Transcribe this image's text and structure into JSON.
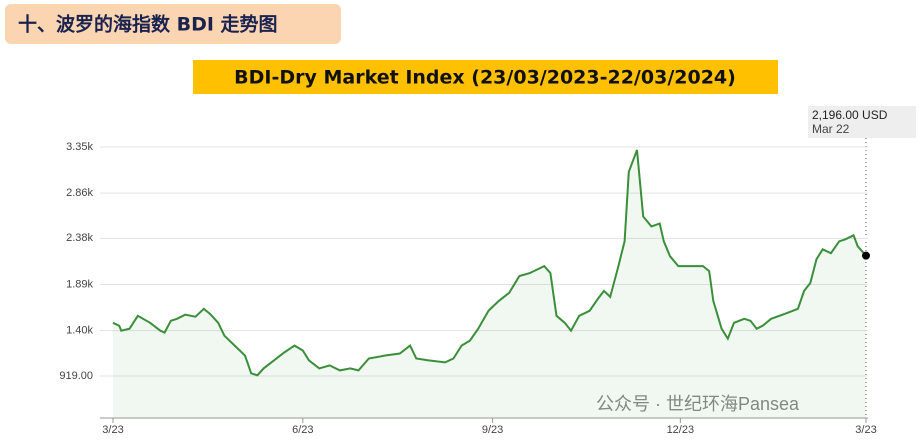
{
  "header": {
    "title": "十、波罗的海指数 BDI 走势图"
  },
  "watermark": "公众号 · 世纪环海Pansea",
  "chart_data": {
    "type": "line",
    "title": "BDI-Dry Market Index (23/03/2023-22/03/2024)",
    "annotation": [
      "2,196.00 USD",
      "Mar 22"
    ],
    "x": [
      0,
      3,
      4,
      8,
      12,
      18,
      23,
      25,
      28,
      31,
      35,
      40,
      44,
      47,
      51,
      54,
      59,
      64,
      67,
      70,
      73,
      78,
      83,
      88,
      92,
      95,
      100,
      105,
      110,
      115,
      119,
      124,
      132,
      139,
      144,
      147,
      153,
      161,
      165,
      169,
      173,
      177,
      182,
      187,
      192,
      197,
      202,
      206,
      209,
      212,
      215,
      219,
      222,
      226,
      231,
      235,
      238,
      241,
      245,
      248,
      250,
      254,
      257,
      261,
      265,
      267,
      270,
      274,
      279,
      286,
      289,
      291,
      295,
      298,
      301,
      306,
      309,
      312,
      315,
      319,
      323,
      327,
      332,
      335,
      338,
      341,
      344,
      348,
      352,
      355,
      359,
      361,
      365
    ],
    "series": [
      {
        "name": "BDI",
        "color": "#3a8f3a",
        "values": [
          1484,
          1453,
          1400,
          1421,
          1558,
          1484,
          1400,
          1379,
          1505,
          1526,
          1569,
          1548,
          1632,
          1579,
          1484,
          1347,
          1242,
          1136,
          947,
          926,
          1000,
          1084,
          1168,
          1242,
          1189,
          1084,
          1000,
          1031,
          978,
          1000,
          978,
          1105,
          1136,
          1158,
          1242,
          1105,
          1084,
          1063,
          1105,
          1242,
          1295,
          1421,
          1611,
          1716,
          1801,
          1980,
          2011,
          2054,
          2085,
          2011,
          1558,
          1484,
          1400,
          1558,
          1611,
          1737,
          1822,
          1758,
          2085,
          2349,
          3086,
          3318,
          2612,
          2507,
          2538,
          2349,
          2190,
          2085,
          2085,
          2085,
          2032,
          1716,
          1421,
          1316,
          1484,
          1526,
          1505,
          1421,
          1453,
          1526,
          1558,
          1590,
          1632,
          1822,
          1906,
          2159,
          2264,
          2222,
          2349,
          2370,
          2412,
          2296,
          2196
        ]
      }
    ],
    "xlim": [
      0,
      365
    ],
    "xticks": [
      {
        "value": 0,
        "label": "3/23"
      },
      {
        "value": 92,
        "label": "6/23"
      },
      {
        "value": 184,
        "label": "9/23"
      },
      {
        "value": 275,
        "label": "12/23"
      },
      {
        "value": 365,
        "label": "3/23"
      }
    ],
    "ylim": [
      473,
      3530
    ],
    "yticks": [
      {
        "value": 919,
        "label": "919.00"
      },
      {
        "value": 1400,
        "label": "1.40k"
      },
      {
        "value": 1890,
        "label": "1.89k"
      },
      {
        "value": 2380,
        "label": "2.38k"
      },
      {
        "value": 2860,
        "label": "2.86k"
      },
      {
        "value": 3350,
        "label": "3.35k"
      }
    ],
    "grid": true
  }
}
